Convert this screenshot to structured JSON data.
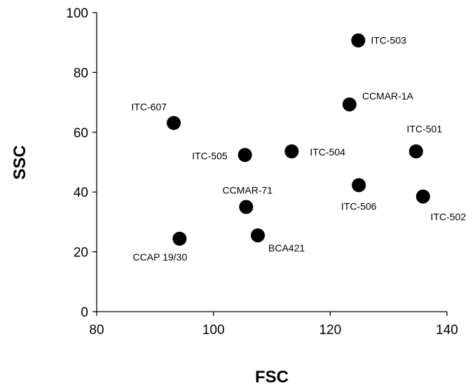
{
  "chart_data": {
    "type": "scatter",
    "title": "",
    "xlabel": "FSC",
    "ylabel": "SSC",
    "xlim": [
      80,
      140
    ],
    "ylim": [
      0,
      100
    ],
    "xticks": [
      80,
      100,
      120,
      140
    ],
    "yticks": [
      0,
      20,
      40,
      60,
      80,
      100
    ],
    "grid": false,
    "points": [
      {
        "label": "ITC-503",
        "x": 124.8,
        "y": 90.7
      },
      {
        "label": "CCMAR-1A",
        "x": 123.3,
        "y": 69.3
      },
      {
        "label": "ITC-607",
        "x": 93.2,
        "y": 63.1
      },
      {
        "label": "ITC-501",
        "x": 134.7,
        "y": 53.6
      },
      {
        "label": "ITC-505",
        "x": 105.4,
        "y": 52.4
      },
      {
        "label": "ITC-504",
        "x": 113.4,
        "y": 53.6
      },
      {
        "label": "ITC-506",
        "x": 124.9,
        "y": 42.3
      },
      {
        "label": "ITC-502",
        "x": 135.9,
        "y": 38.5
      },
      {
        "label": "CCMAR-71",
        "x": 105.6,
        "y": 35.0
      },
      {
        "label": "BCA421",
        "x": 107.6,
        "y": 25.5
      },
      {
        "label": "CCAP 19/30",
        "x": 94.2,
        "y": 24.4
      }
    ]
  }
}
